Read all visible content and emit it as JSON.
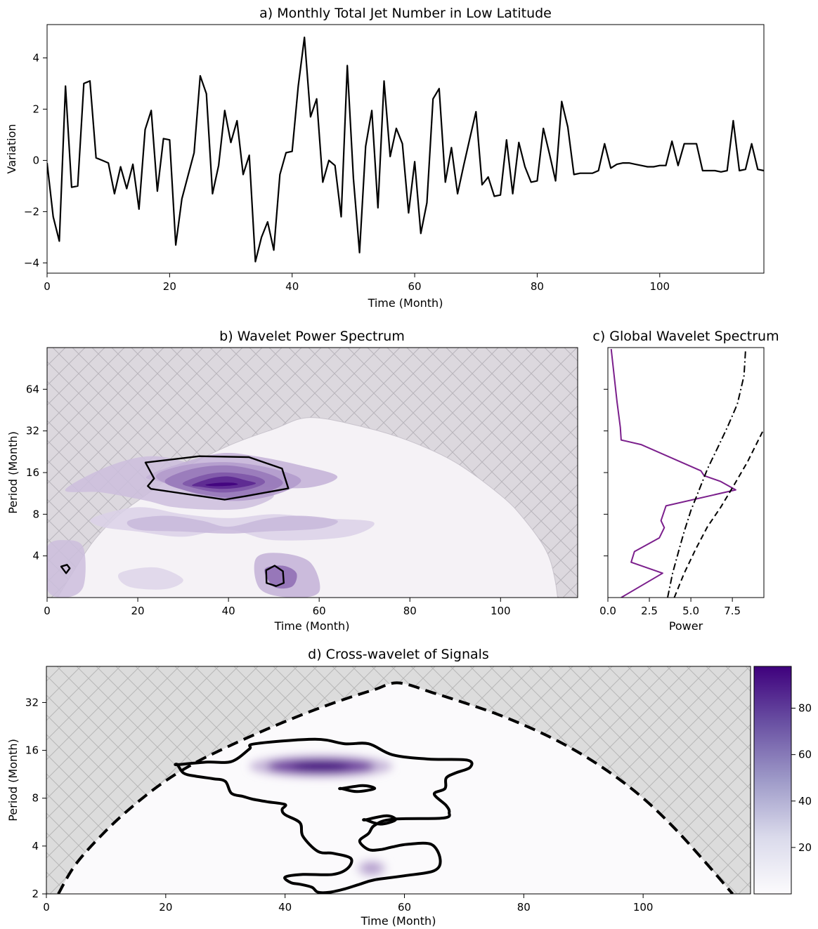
{
  "chart_data": [
    {
      "id": "a",
      "type": "line",
      "title": "a) Monthly Total Jet Number in Low Latitude",
      "xlabel": "Time (Month)",
      "ylabel": "Variation",
      "xlim": [
        0,
        117
      ],
      "ylim": [
        -4.4,
        5.3
      ],
      "xticks": [
        0,
        20,
        40,
        60,
        80,
        100
      ],
      "yticks": [
        -4,
        -2,
        0,
        2,
        4
      ],
      "grid": false,
      "color": "#000000",
      "series": [
        {
          "x": [
            0,
            1,
            2,
            3,
            4,
            5,
            6,
            7,
            8,
            9,
            10,
            11,
            12,
            13,
            14,
            15,
            16,
            17,
            18,
            19,
            20,
            21,
            22,
            23,
            24,
            25,
            26,
            27,
            28,
            29,
            30,
            31,
            32,
            33,
            34,
            35,
            36,
            37,
            38,
            39,
            40,
            41,
            42,
            43,
            44,
            45,
            46,
            47,
            48,
            49,
            50,
            51,
            52,
            53,
            54,
            55,
            56,
            57,
            58,
            59,
            60,
            61,
            62,
            63,
            64,
            65,
            66,
            67,
            68,
            69,
            70,
            71,
            72,
            73,
            74,
            75,
            76,
            77,
            78,
            79,
            80,
            81,
            82,
            83,
            84,
            85,
            86,
            87,
            88,
            89,
            90,
            91,
            92,
            93,
            94,
            95,
            96,
            97,
            98,
            99,
            100,
            101,
            102,
            103,
            104,
            105,
            106,
            107,
            108,
            109,
            110,
            111,
            112,
            113,
            114,
            115,
            116,
            117
          ],
          "y": [
            -0.1,
            -2.2,
            -3.15,
            2.9,
            -1.05,
            -1.0,
            3.0,
            3.1,
            0.1,
            0.0,
            -0.1,
            -1.3,
            -0.25,
            -1.1,
            -0.15,
            -1.9,
            1.2,
            1.95,
            -1.2,
            0.85,
            0.8,
            -3.3,
            -1.5,
            -0.6,
            0.3,
            3.3,
            2.6,
            -1.3,
            -0.2,
            1.95,
            0.7,
            1.55,
            -0.55,
            0.2,
            -3.95,
            -3.0,
            -2.4,
            -3.5,
            -0.55,
            0.3,
            0.35,
            2.9,
            4.8,
            1.7,
            2.4,
            -0.85,
            0.0,
            -0.2,
            -2.2,
            3.7,
            -0.7,
            -3.6,
            0.55,
            1.95,
            -1.85,
            3.1,
            0.15,
            1.25,
            0.65,
            -2.05,
            -0.05,
            -2.85,
            -1.65,
            2.4,
            2.8,
            -0.85,
            0.5,
            -1.3,
            -0.2,
            0.85,
            1.9,
            -0.95,
            -0.65,
            -1.4,
            -1.35,
            0.8,
            -1.3,
            0.7,
            -0.25,
            -0.85,
            -0.8,
            1.25,
            0.25,
            -0.8,
            2.3,
            1.3,
            -0.55,
            -0.5,
            -0.5,
            -0.5,
            -0.4,
            0.65,
            -0.3,
            -0.15,
            -0.1,
            -0.1,
            -0.15,
            -0.2,
            -0.25,
            -0.25,
            -0.2,
            -0.2,
            0.75,
            -0.2,
            0.65,
            0.65,
            0.65,
            -0.4,
            -0.4,
            -0.4,
            -0.45,
            -0.4,
            1.55,
            -0.4,
            -0.35,
            0.65,
            -0.35,
            -0.4
          ]
        }
      ]
    },
    {
      "id": "b",
      "type": "heatmap",
      "title": "b) Wavelet Power Spectrum",
      "xlabel": "Time (Month)",
      "ylabel": "Period (Month)",
      "xlim": [
        0,
        117
      ],
      "ylim": [
        2,
        128
      ],
      "yscale": "log2",
      "xticks": [
        0,
        20,
        40,
        60,
        80,
        100
      ],
      "yticks": [
        4,
        8,
        16,
        32,
        64
      ],
      "colormap": "Purples",
      "hatch_color": "#d9d6dc",
      "cone_of_influence": [
        [
          0,
          1.5
        ],
        [
          5,
          2.8
        ],
        [
          10,
          5
        ],
        [
          15,
          7.5
        ],
        [
          20,
          10
        ],
        [
          30,
          17
        ],
        [
          40,
          25
        ],
        [
          50,
          33
        ],
        [
          58,
          40
        ],
        [
          70,
          34
        ],
        [
          80,
          27
        ],
        [
          90,
          19
        ],
        [
          100,
          11
        ],
        [
          105,
          7.5
        ],
        [
          110,
          4.4
        ],
        [
          112,
          2.7
        ],
        [
          113,
          1.5
        ]
      ],
      "power_patches": [
        {
          "x": [
            4,
            12,
            22,
            28,
            38,
            45,
            50,
            43,
            35,
            24,
            14
          ],
          "y": [
            12,
            11.5,
            10,
            9,
            8.6,
            9,
            11,
            13,
            17,
            21,
            18
          ],
          "level": 0.2
        },
        {
          "x": [
            22,
            28,
            38,
            46,
            56,
            64,
            58,
            46,
            30,
            24
          ],
          "y": [
            15,
            18,
            22,
            21,
            18,
            15,
            12.5,
            12.5,
            13,
            14
          ],
          "level": 0.25
        },
        {
          "x": [
            24,
            30,
            40,
            50,
            56,
            50,
            40,
            30
          ],
          "y": [
            15,
            18,
            19,
            17,
            14,
            11,
            10,
            12
          ],
          "level": 0.35
        },
        {
          "x": [
            26,
            32,
            40,
            48,
            52,
            48,
            40,
            30
          ],
          "y": [
            14,
            17,
            18,
            16,
            13.5,
            11.5,
            10.5,
            12
          ],
          "level": 0.5
        },
        {
          "x": [
            30,
            35,
            40,
            46,
            48,
            44,
            38,
            32
          ],
          "y": [
            13.5,
            15.5,
            16,
            15,
            13.5,
            12,
            11.5,
            12.5
          ],
          "level": 0.65
        },
        {
          "x": [
            32,
            36,
            40,
            44,
            46,
            42,
            38,
            34
          ],
          "y": [
            13,
            14.5,
            15,
            14,
            13.3,
            12.4,
            12.2,
            12.6
          ],
          "level": 0.85
        },
        {
          "x": [
            35,
            38,
            41,
            42,
            39,
            36
          ],
          "y": [
            13.1,
            13.5,
            13.5,
            13.1,
            12.8,
            12.8
          ],
          "level": 1.0
        },
        {
          "x": [
            10,
            20,
            30,
            40,
            50,
            60,
            72,
            66,
            50,
            40,
            30,
            20,
            12
          ],
          "y": [
            7.5,
            9,
            8,
            7.5,
            8,
            7.5,
            7,
            5.5,
            5.2,
            6.2,
            5.5,
            6,
            6.5
          ],
          "level": 0.12
        },
        {
          "x": [
            18,
            26,
            34,
            40,
            48,
            56,
            64,
            60,
            48,
            40,
            30,
            20
          ],
          "y": [
            7.2,
            7.8,
            7.2,
            6.5,
            7.4,
            7.8,
            7.2,
            6.3,
            6.0,
            5.8,
            6.0,
            6.2
          ],
          "level": 0.22
        },
        {
          "x": [
            0,
            4,
            8,
            8,
            4,
            0
          ],
          "y": [
            4.6,
            5.2,
            4.6,
            2.4,
            2.0,
            2.3
          ],
          "level": 0.2
        },
        {
          "x": [
            46,
            51,
            58,
            60,
            54,
            47
          ],
          "y": [
            3.8,
            4.2,
            3.6,
            2.2,
            2.0,
            2.3
          ],
          "level": 0.25
        },
        {
          "x": [
            48,
            52,
            55,
            54,
            50
          ],
          "y": [
            3.2,
            3.4,
            3.0,
            2.4,
            2.4
          ],
          "level": 0.55
        },
        {
          "x": [
            16,
            24,
            30,
            26,
            18
          ],
          "y": [
            3.0,
            3.3,
            2.7,
            2.3,
            2.4
          ],
          "level": 0.1
        }
      ],
      "significance_contours": [
        {
          "x": [
            21.7,
            33.6,
            44.5,
            51.8,
            53.2,
            43.8,
            39.2,
            22.9,
            22.2,
            23.6,
            21.7
          ],
          "y": [
            18.9,
            21.0,
            20.7,
            17.1,
            12.3,
            10.8,
            10.2,
            12.2,
            12.8,
            14.5,
            18.9
          ]
        },
        {
          "x": [
            3.1,
            4.4,
            5.0,
            4.2,
            3.1
          ],
          "y": [
            3.35,
            3.45,
            3.25,
            3.0,
            3.35
          ]
        },
        {
          "x": [
            48.3,
            50.2,
            52.0,
            52.2,
            50.5,
            48.4,
            48.3
          ],
          "y": [
            3.15,
            3.4,
            3.1,
            2.55,
            2.42,
            2.55,
            3.15
          ]
        }
      ]
    },
    {
      "id": "c",
      "type": "line",
      "title": "c) Global Wavelet Spectrum",
      "xlabel": "Power",
      "ylabel": "",
      "xlim": [
        0,
        9.4
      ],
      "ylim": [
        2,
        128
      ],
      "yscale": "log2",
      "xticks": [
        0.0,
        2.5,
        5.0,
        7.5
      ],
      "xtick_labels": [
        "0.0",
        "2.5",
        "5.0",
        "7.5"
      ],
      "grid": false,
      "series": [
        {
          "style": "solid",
          "color": "#7b1f8c",
          "x": [
            0.8,
            3.3,
            1.4,
            1.6,
            3.1,
            3.4,
            3.2,
            3.5,
            7.7,
            6.8,
            5.8,
            5.6,
            2.0,
            0.8,
            0.75,
            0.55,
            0.2
          ],
          "y": [
            2.0,
            3.0,
            3.6,
            4.3,
            5.4,
            6.4,
            7.2,
            9.2,
            12.0,
            13.8,
            15.2,
            16.5,
            25.5,
            27.5,
            34,
            52,
            125
          ]
        },
        {
          "style": "dashdot",
          "color": "#000000",
          "x": [
            3.6,
            3.9,
            4.3,
            4.6,
            5.0,
            5.5,
            6.0,
            6.6,
            7.2,
            7.8,
            8.2,
            8.3
          ],
          "y": [
            2.0,
            3.0,
            4.5,
            6.0,
            8.5,
            12.0,
            17.0,
            24.0,
            34.0,
            50.0,
            80.0,
            125.0
          ]
        },
        {
          "style": "dashed",
          "color": "#000000",
          "x": [
            4.0,
            4.6,
            5.3,
            6.0,
            6.8,
            7.6,
            8.4,
            9.4
          ],
          "y": [
            2.0,
            3.0,
            4.5,
            6.5,
            9.0,
            13.0,
            19.0,
            33.0
          ]
        }
      ]
    },
    {
      "id": "d",
      "type": "heatmap",
      "title": "d) Cross-wavelet of Signals",
      "xlabel": "Time (Month)",
      "ylabel": "Period (Month)",
      "xlim": [
        0,
        118
      ],
      "ylim": [
        2,
        54
      ],
      "yscale": "log2",
      "xticks": [
        0,
        20,
        40,
        60,
        80,
        100
      ],
      "yticks": [
        2,
        4,
        8,
        16,
        32
      ],
      "colormap": "Purples",
      "colorbar": {
        "range": [
          0,
          98
        ],
        "ticks": [
          20,
          40,
          60,
          80
        ]
      },
      "hatch_color": "#dadada",
      "cone_of_influence": [
        [
          2,
          2
        ],
        [
          5,
          3.1
        ],
        [
          10,
          5
        ],
        [
          15,
          7.4
        ],
        [
          20,
          10.3
        ],
        [
          25,
          13.4
        ],
        [
          30,
          16.6
        ],
        [
          35,
          20.2
        ],
        [
          40,
          24.3
        ],
        [
          45,
          28.8
        ],
        [
          50,
          33.6
        ],
        [
          55,
          38.6
        ],
        [
          59,
          42.5
        ],
        [
          65,
          36.6
        ],
        [
          70,
          31.9
        ],
        [
          75,
          27.5
        ],
        [
          80,
          23.1
        ],
        [
          85,
          18.9
        ],
        [
          90,
          14.9
        ],
        [
          95,
          11.2
        ],
        [
          100,
          8.0
        ],
        [
          105,
          5.3
        ],
        [
          110,
          3.3
        ],
        [
          115,
          2.0
        ]
      ],
      "hotspots": [
        {
          "x": 46,
          "y": 12.7,
          "rx": 12.0,
          "ry": 0.15,
          "peak": 98
        },
        {
          "x": 54.5,
          "y": 2.9,
          "rx": 2.6,
          "ry": 0.12,
          "peak": 35
        }
      ],
      "significance_contours": [
        {
          "x": [
            22.0,
            27.0,
            31.0,
            34.0,
            35.0,
            45.0,
            50.0,
            54.0,
            58.0,
            64.0,
            70.5,
            71.0,
            68.5,
            67.0,
            66.8,
            65.0,
            67.0,
            67.5,
            66.5,
            58.0,
            55.0,
            54.0,
            52.5,
            54.0,
            56.0,
            58.0,
            60.5,
            64.5,
            66.0,
            65.0,
            60.0,
            55.0,
            52.5,
            50.0,
            47.5,
            45.5,
            44.5,
            42.5,
            41.0,
            40.0,
            43.0,
            48.0,
            50.5,
            51.0,
            48.0,
            45.5,
            43.0,
            42.5,
            40.0,
            39.5,
            40.0,
            37.0,
            34.5,
            33.0,
            31.0,
            30.0,
            28.0,
            25.0,
            23.0,
            22.0
          ],
          "y": [
            13.0,
            13.5,
            13.6,
            16.3,
            17.6,
            18.8,
            17.6,
            17.6,
            15.0,
            14.1,
            13.9,
            12.5,
            11.5,
            10.7,
            9.2,
            8.5,
            7.2,
            6.5,
            6.0,
            5.9,
            5.4,
            4.8,
            4.3,
            3.8,
            3.8,
            3.95,
            4.1,
            4.1,
            3.3,
            2.8,
            2.6,
            2.45,
            2.3,
            2.15,
            2.05,
            2.05,
            2.2,
            2.3,
            2.35,
            2.55,
            2.65,
            2.65,
            2.9,
            3.35,
            3.6,
            3.7,
            4.6,
            5.6,
            6.3,
            6.8,
            7.3,
            7.6,
            7.9,
            8.2,
            8.6,
            10.2,
            10.6,
            11.0,
            11.5,
            13.0
          ]
        },
        {
          "x": [
            49.5,
            53.0,
            55.0,
            52.0,
            49.5
          ],
          "y": [
            9.2,
            9.6,
            9.2,
            8.8,
            9.2
          ]
        },
        {
          "x": [
            53.5,
            57.0,
            58.5,
            56.0,
            53.5
          ],
          "y": [
            5.85,
            6.2,
            5.85,
            5.5,
            5.85
          ]
        }
      ]
    }
  ]
}
